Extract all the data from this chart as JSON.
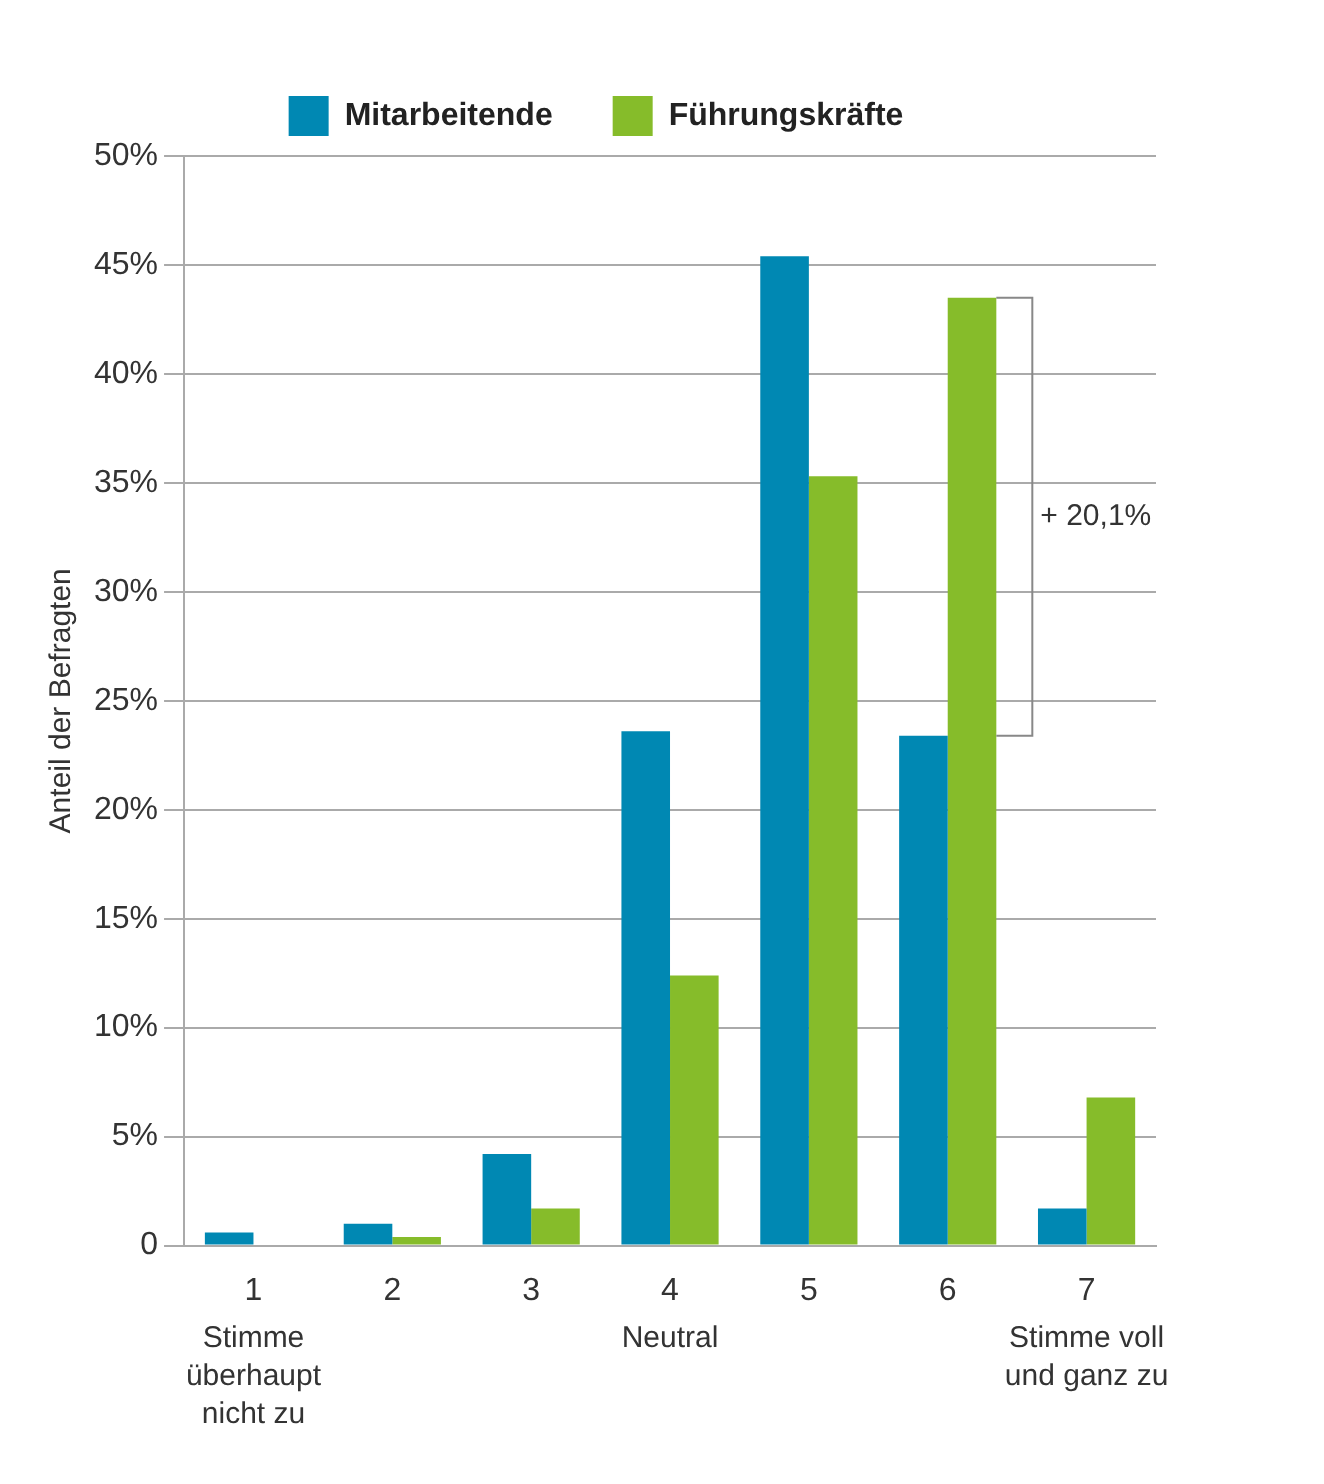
{
  "chart_data": {
    "type": "bar",
    "ylabel": "Anteil der Befragten",
    "categories": [
      "1",
      "2",
      "3",
      "4",
      "5",
      "6",
      "7"
    ],
    "series": [
      {
        "name": "Mitarbeitende",
        "color": "#0088b3",
        "values": [
          0.6,
          1.0,
          4.2,
          23.6,
          45.4,
          23.4,
          1.7
        ]
      },
      {
        "name": "Führungskräfte",
        "color": "#86bc2a",
        "values": [
          0,
          0.4,
          1.7,
          12.4,
          35.3,
          43.5,
          6.8
        ]
      }
    ],
    "ylim": [
      0,
      50
    ],
    "yticks": [
      {
        "value": 0,
        "label": "0"
      },
      {
        "value": 5,
        "label": "5%"
      },
      {
        "value": 10,
        "label": "10%"
      },
      {
        "value": 15,
        "label": "15%"
      },
      {
        "value": 20,
        "label": "20%"
      },
      {
        "value": 25,
        "label": "25%"
      },
      {
        "value": 30,
        "label": "30%"
      },
      {
        "value": 35,
        "label": "35%"
      },
      {
        "value": 40,
        "label": "40%"
      },
      {
        "value": 45,
        "label": "45%"
      },
      {
        "value": 50,
        "label": "50%"
      }
    ],
    "grid": "y",
    "legend": "top",
    "annotations": [
      "Stimme überhaupt nicht zu",
      "Neutral",
      "Stimme voll und ganz zu",
      "+ 20,1%"
    ]
  }
}
